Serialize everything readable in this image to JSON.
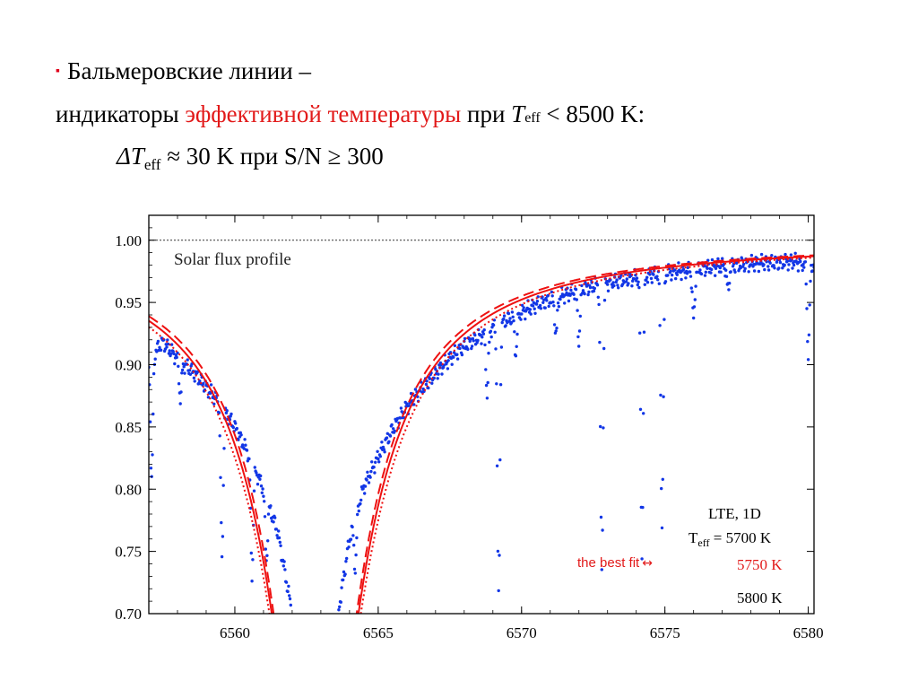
{
  "slide": {
    "bullet": "▪",
    "line1": "Бальмеровские линии –",
    "line2_a": "индикаторы ",
    "line2_red": "эффективной температуры",
    "line2_b": " при ",
    "line2_T": "T",
    "line2_eff": "eff",
    "line2_c": " < 8500 K:",
    "line3_delta": "ΔT",
    "line3_eff": "eff",
    "line3_rest": " ≈ 30 K при S/N ≥ 300"
  },
  "colors": {
    "observed": "#1236e6",
    "model": "#ee1111",
    "accent_text": "#e21a1a"
  },
  "chart_data": {
    "type": "line",
    "title": "Solar flux profile",
    "xlabel": "",
    "ylabel": "",
    "xlim": [
      6557.0,
      6580.2
    ],
    "ylim": [
      0.7,
      1.02
    ],
    "xticks": [
      6560,
      6565,
      6570,
      6575,
      6580
    ],
    "xtick_labels": [
      "6560",
      "6565",
      "6570",
      "6575",
      "6580"
    ],
    "yticks": [
      0.7,
      0.75,
      0.8,
      0.85,
      0.9,
      0.95,
      1.0
    ],
    "ytick_labels": [
      "0.70",
      "0.75",
      "0.80",
      "0.85",
      "0.90",
      "0.95",
      "1.00"
    ],
    "continuum": 1.0,
    "line_center": 6562.8,
    "series": [
      {
        "name": "5700 K",
        "style": "dashed",
        "color": "#ee1111"
      },
      {
        "name": "5750 K",
        "style": "solid",
        "color": "#ee1111"
      },
      {
        "name": "5800 K",
        "style": "dotted",
        "color": "#ee1111"
      }
    ],
    "observed": {
      "style": "dots",
      "color": "#1236e6",
      "x": [
        6557.0,
        6557.5,
        6558.0,
        6558.5,
        6559.0,
        6559.5,
        6560.0,
        6560.5,
        6561.0,
        6561.5,
        6562.0,
        6563.6,
        6564.0,
        6564.5,
        6565.0,
        6565.5,
        6566.0,
        6566.5,
        6567.0,
        6567.5,
        6568.0,
        6568.5,
        6569.0,
        6569.5,
        6570.0,
        6570.5,
        6571.0,
        6571.5,
        6572.0,
        6572.5,
        6573.0,
        6573.5,
        6574.0,
        6574.5,
        6575.0,
        6575.5,
        6576.0,
        6576.5,
        6577.0,
        6577.5,
        6578.0,
        6578.5,
        6579.0,
        6579.5,
        6580.0
      ],
      "y": [
        0.905,
        0.918,
        0.905,
        0.895,
        0.882,
        0.868,
        0.85,
        0.827,
        0.8,
        0.765,
        0.7,
        0.7,
        0.76,
        0.802,
        0.826,
        0.848,
        0.866,
        0.88,
        0.893,
        0.905,
        0.915,
        0.922,
        0.93,
        0.936,
        0.942,
        0.948,
        0.952,
        0.956,
        0.96,
        0.963,
        0.966,
        0.968,
        0.97,
        0.972,
        0.974,
        0.975,
        0.976,
        0.978,
        0.979,
        0.98,
        0.981,
        0.982,
        0.982,
        0.983,
        0.98
      ],
      "absorption_lines": [
        {
          "x": 6557.1,
          "depth": 0.1
        },
        {
          "x": 6558.1,
          "depth": 0.03
        },
        {
          "x": 6559.55,
          "depth": 0.12
        },
        {
          "x": 6560.6,
          "depth": 0.09
        },
        {
          "x": 6561.1,
          "depth": 0.05
        },
        {
          "x": 6564.2,
          "depth": 0.04
        },
        {
          "x": 6568.8,
          "depth": 0.05
        },
        {
          "x": 6569.2,
          "depth": 0.22
        },
        {
          "x": 6569.8,
          "depth": 0.03
        },
        {
          "x": 6571.2,
          "depth": 0.03
        },
        {
          "x": 6572.0,
          "depth": 0.04
        },
        {
          "x": 6572.8,
          "depth": 0.23
        },
        {
          "x": 6574.2,
          "depth": 0.22
        },
        {
          "x": 6574.9,
          "depth": 0.2
        },
        {
          "x": 6576.0,
          "depth": 0.04
        },
        {
          "x": 6577.2,
          "depth": 0.02
        },
        {
          "x": 6580.0,
          "depth": 0.07
        }
      ]
    },
    "legend": {
      "header": "LTE,  1D",
      "teff_T": "T",
      "teff_sub": "eff",
      "teff_val": " = 5700 K",
      "mid": "5750 K",
      "low": "5800 K",
      "arrow_label": "the best fit",
      "arrow": "↔"
    }
  }
}
